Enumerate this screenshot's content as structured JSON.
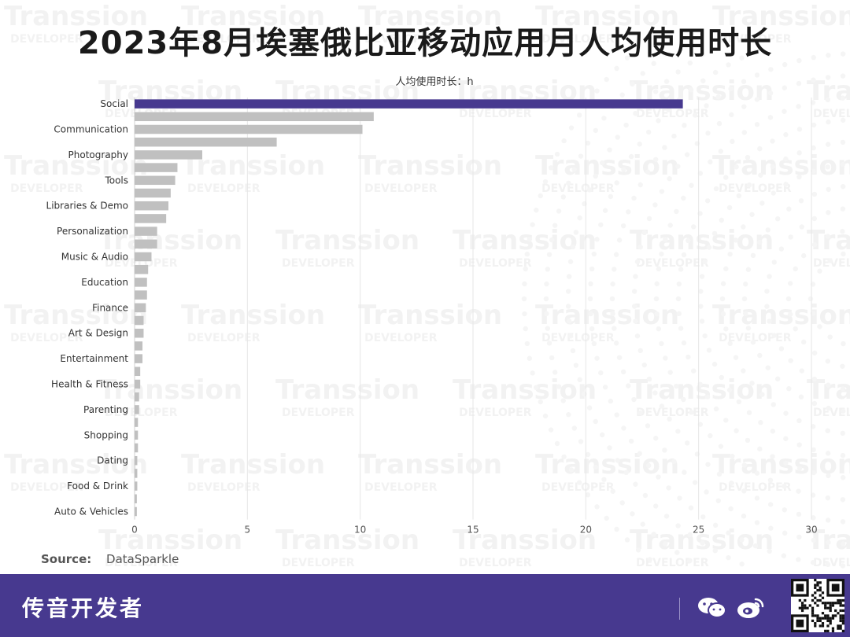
{
  "title": "2023年8月埃塞俄比亚移动应用月人均使用时长",
  "unit_label": "人均使用时长：h",
  "source": {
    "key": "Source:",
    "value": "DataSparkle"
  },
  "footer": {
    "brand": "传音开发者"
  },
  "watermark": {
    "word": "Transsion",
    "sub": "DEVELOPER"
  },
  "colors": {
    "highlight": "#47398f",
    "bar": "#c0c0c0",
    "footer_bg": "#47398f",
    "grid": "#e6e6e6"
  },
  "icons": {
    "wechat": "wechat-icon",
    "weibo": "weibo-icon",
    "qr": "qr-code"
  },
  "chart_data": {
    "type": "bar",
    "orientation": "horizontal",
    "categories": [
      "Social",
      "",
      "Communication",
      "",
      "Photography",
      "",
      "Tools",
      "",
      "Libraries & Demo",
      "",
      "Personalization",
      "",
      "Music & Audio",
      "",
      "Education",
      "",
      "Finance",
      "",
      "Art & Design",
      "",
      "Entertainment",
      "",
      "Health & Fitness",
      "",
      "Parenting",
      "",
      "Shopping",
      "",
      "Dating",
      "",
      "Food & Drink",
      "",
      "Auto & Vehicles"
    ],
    "values": [
      24.3,
      10.6,
      10.1,
      6.3,
      3.0,
      1.9,
      1.8,
      1.6,
      1.5,
      1.4,
      1.0,
      1.0,
      0.75,
      0.6,
      0.55,
      0.55,
      0.5,
      0.4,
      0.4,
      0.35,
      0.35,
      0.25,
      0.25,
      0.2,
      0.2,
      0.15,
      0.15,
      0.15,
      0.12,
      0.12,
      0.12,
      0.1,
      0.1
    ],
    "highlight_index": 0,
    "xlim": [
      0,
      30
    ],
    "xticks": [
      0,
      5,
      10,
      15,
      20,
      25,
      30
    ],
    "grid": true
  }
}
